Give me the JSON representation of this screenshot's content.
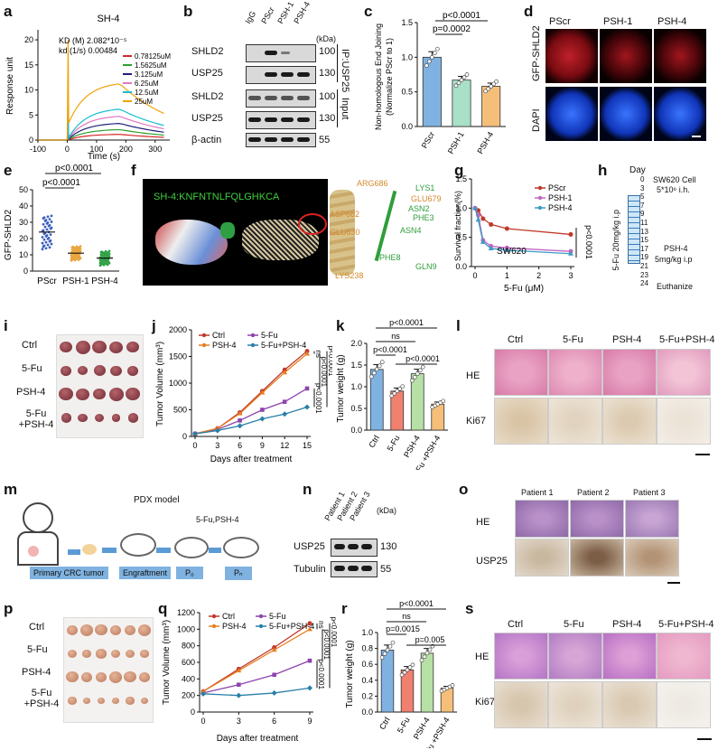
{
  "panels": {
    "a": {
      "letter": "a",
      "title": "SH-4",
      "kd_line": "KD (M)  2.082*10⁻⁵",
      "kd1s_line": "kd (1/s)  0.00484",
      "ylabel": "Response unit",
      "xlabel": "Time (s)",
      "xticks": [
        "-100",
        "0",
        "100",
        "200",
        "300"
      ],
      "yticks": [
        "0",
        "5",
        "10",
        "15",
        "20"
      ],
      "legend": [
        "0.78125uM",
        "1.5625uM",
        "3.125uM",
        "6.25uM",
        "12.5uM",
        "25uM"
      ],
      "colors": [
        "#d62728",
        "#2ca02c",
        "#1f1f7a",
        "#e377c2",
        "#17becf",
        "#f0a30a"
      ]
    },
    "b": {
      "letter": "b",
      "lanes": [
        "IgG",
        "PScr",
        "PSH-1",
        "PSH-4"
      ],
      "unit": "(kDa)",
      "rows": [
        "SHLD2",
        "USP25",
        "SHLD2",
        "USP25",
        "β-actin"
      ],
      "mw": [
        "100",
        "130",
        "100",
        "130",
        "55"
      ],
      "group1": "IP:USP25",
      "group2": "Input"
    },
    "c": {
      "letter": "c",
      "ylabel": "Non-homologous End Joining (Normalize PScr to 1)",
      "categories": [
        "PScr",
        "PSH-1",
        "PSH-4"
      ],
      "p1": "p<0.0001",
      "p2": "p=0.0002",
      "yticks": [
        "0.0",
        "0.5",
        "1.0",
        "1.5"
      ]
    },
    "d": {
      "letter": "d",
      "cols": [
        "PScr",
        "PSH-1",
        "PSH-4"
      ],
      "rows": [
        "GFP-SHLD2",
        "DAPI"
      ]
    },
    "e": {
      "letter": "e",
      "ylabel": "GFP-SHLD2",
      "categories": [
        "PScr",
        "PSH-1",
        "PSH-4"
      ],
      "p1": "p<0.0001",
      "p2": "p<0.0001",
      "yticks": [
        "0",
        "10",
        "20",
        "30",
        "40",
        "50"
      ]
    },
    "f": {
      "letter": "f",
      "peptide": "SH-4:KNFNTNLFQLGHKCA",
      "residues": [
        "ARG686",
        "LYS1",
        "GLU679",
        "ASN2",
        "PHE3",
        "ASP682",
        "GLU630",
        "ASN4",
        "PHE8",
        "GLN9",
        "LYS238"
      ]
    },
    "g": {
      "letter": "g",
      "ylabel": "Survival fraction(%)",
      "xlabel": "5-Fu (μM)",
      "legend": [
        "PScr",
        "PSH-1",
        "PSH-4"
      ],
      "cell": "SW620",
      "p": "p<0.0001",
      "xticks": [
        "0",
        "1",
        "2",
        "3"
      ],
      "yticks": [
        "0.0",
        "0.5",
        "1.0",
        "1.5"
      ]
    },
    "h": {
      "letter": "h",
      "day_label": "Day",
      "days": [
        "0",
        "3",
        "5",
        "7",
        "9",
        "11",
        "13",
        "15",
        "17",
        "19",
        "21",
        "23",
        "24"
      ],
      "left_label": "5-Fu 20mg/kg i.p",
      "t1": "SW620 Cell",
      "t2": "5*10⁶ i.h.",
      "t3": "PSH-4",
      "t4": "5mg/kg i.p",
      "t5": "Euthanize"
    },
    "i": {
      "letter": "i",
      "rows": [
        "Ctrl",
        "5-Fu",
        "PSH-4",
        "5-Fu +PSH-4"
      ]
    },
    "j": {
      "letter": "j",
      "ylabel": "Tumor Volume (mm³)",
      "xlabel": "Days after treatment",
      "legend": [
        "Ctrl",
        "5-Fu",
        "PSH-4",
        "5-Fu+PSH-4"
      ],
      "xticks": [
        "0",
        "3",
        "6",
        "9",
        "12",
        "15"
      ],
      "yticks": [
        "0",
        "500",
        "1000",
        "1500",
        "2000"
      ],
      "sig": [
        "ns",
        "p<0.0001",
        "p<0.0001",
        "p<0.0001"
      ]
    },
    "k": {
      "letter": "k",
      "ylabel": "Tumor weight (g)",
      "categories": [
        "Ctrl",
        "5-Fu",
        "PSH-4",
        "5-Fu +PSH-4"
      ],
      "p_top": "p<0.0001",
      "p_ns": "ns",
      "p_a": "p<0.0001",
      "p_b": "p<0.0001",
      "yticks": [
        "0.0",
        "0.5",
        "1.0",
        "1.5",
        "2.0"
      ]
    },
    "l": {
      "letter": "l",
      "cols": [
        "Ctrl",
        "5-Fu",
        "PSH-4",
        "5-Fu+PSH-4"
      ],
      "rows": [
        "HE",
        "Ki67"
      ]
    },
    "m": {
      "letter": "m",
      "title": "PDX model",
      "treat": "5-Fu,PSH-4",
      "steps": [
        "Primary CRC tumor",
        "Engraftment",
        "P₀",
        "Pₙ"
      ]
    },
    "n": {
      "letter": "n",
      "lanes": [
        "Patient 1",
        "Patient 2",
        "Patient 3"
      ],
      "unit": "(kDa)",
      "rows": [
        "USP25",
        "Tubulin"
      ],
      "mw": [
        "130",
        "55"
      ]
    },
    "o": {
      "letter": "o",
      "cols": [
        "Patient 1",
        "Patient 2",
        "Patient 3"
      ],
      "rows": [
        "HE",
        "USP25"
      ]
    },
    "p": {
      "letter": "p",
      "rows": [
        "Ctrl",
        "5-Fu",
        "PSH-4",
        "5-Fu +PSH-4"
      ]
    },
    "q": {
      "letter": "q",
      "ylabel": "Tumor Volume (mm³)",
      "xlabel": "Days after treatment",
      "legend": [
        "Ctrl",
        "5-Fu",
        "PSH-4",
        "5-Fu+PSH-4"
      ],
      "xticks": [
        "0",
        "3",
        "6",
        "9"
      ],
      "yticks": [
        "0",
        "200",
        "400",
        "600",
        "800",
        "1000",
        "1200"
      ],
      "sig": [
        "ns",
        "p<0.0001",
        "p<0.0001",
        "p<0.0001"
      ]
    },
    "r": {
      "letter": "r",
      "ylabel": "Tumor weight (g)",
      "categories": [
        "Ctrl",
        "5-Fu",
        "PSH-4",
        "5-Fu +PSH-4"
      ],
      "p_top": "p<0.0001",
      "p_ns": "ns",
      "p_a": "p=0.0015",
      "p_b": "p=0.005",
      "yticks": [
        "0.0",
        "0.2",
        "0.4",
        "0.6",
        "0.8",
        "1.0"
      ]
    },
    "s": {
      "letter": "s",
      "cols": [
        "Ctrl",
        "5-Fu",
        "PSH-4",
        "5-Fu+PSH-4"
      ],
      "rows": [
        "HE",
        "Ki67"
      ]
    }
  },
  "chart_data": [
    {
      "panel": "c",
      "type": "bar",
      "categories": [
        "PScr",
        "PSH-1",
        "PSH-4"
      ],
      "values": [
        1.0,
        0.67,
        0.58
      ],
      "ylabel": "Non-homologous End Joining (Normalize PScr to 1)",
      "ylim": [
        0,
        1.5
      ]
    },
    {
      "panel": "g",
      "type": "line",
      "x": [
        0,
        0.1,
        0.25,
        0.5,
        1,
        3
      ],
      "series": [
        {
          "name": "PScr",
          "values": [
            1.0,
            0.96,
            0.82,
            0.72,
            0.65,
            0.55
          ]
        },
        {
          "name": "PSH-1",
          "values": [
            1.0,
            0.88,
            0.45,
            0.35,
            0.32,
            0.26
          ]
        },
        {
          "name": "PSH-4",
          "values": [
            1.0,
            0.8,
            0.42,
            0.31,
            0.28,
            0.22
          ]
        }
      ],
      "xlabel": "5-Fu (μM)",
      "ylabel": "Survival fraction(%)",
      "ylim": [
        0,
        1.5
      ]
    },
    {
      "panel": "j",
      "type": "line",
      "x": [
        0,
        3,
        6,
        9,
        12,
        15
      ],
      "series": [
        {
          "name": "Ctrl",
          "values": [
            50,
            150,
            450,
            850,
            1250,
            1600
          ]
        },
        {
          "name": "5-Fu",
          "values": [
            50,
            130,
            300,
            500,
            650,
            900
          ]
        },
        {
          "name": "PSH-4",
          "values": [
            50,
            150,
            430,
            820,
            1200,
            1550
          ]
        },
        {
          "name": "5-Fu+PSH-4",
          "values": [
            50,
            110,
            200,
            330,
            420,
            550
          ]
        }
      ],
      "xlabel": "Days after treatment",
      "ylabel": "Tumor Volume (mm³)",
      "ylim": [
        0,
        2000
      ]
    },
    {
      "panel": "k",
      "type": "bar",
      "categories": [
        "Ctrl",
        "5-Fu",
        "PSH-4",
        "5-Fu +PSH-4"
      ],
      "values": [
        1.4,
        0.9,
        1.3,
        0.6
      ],
      "ylabel": "Tumor weight (g)",
      "ylim": [
        0,
        2.0
      ]
    },
    {
      "panel": "q",
      "type": "line",
      "x": [
        0,
        3,
        6,
        9
      ],
      "series": [
        {
          "name": "Ctrl",
          "values": [
            250,
            520,
            780,
            1070
          ]
        },
        {
          "name": "5-Fu",
          "values": [
            230,
            330,
            450,
            620
          ]
        },
        {
          "name": "PSH-4",
          "values": [
            250,
            500,
            750,
            1000
          ]
        },
        {
          "name": "5-Fu+PSH-4",
          "values": [
            220,
            200,
            230,
            290
          ]
        }
      ],
      "xlabel": "Days after treatment",
      "ylabel": "Tumor Volume (mm³)",
      "ylim": [
        0,
        1200
      ]
    },
    {
      "panel": "r",
      "type": "bar",
      "categories": [
        "Ctrl",
        "5-Fu",
        "PSH-4",
        "5-Fu +PSH-4"
      ],
      "values": [
        0.78,
        0.53,
        0.74,
        0.3
      ],
      "ylabel": "Tumor weight (g)",
      "ylim": [
        0,
        1.0
      ]
    }
  ]
}
